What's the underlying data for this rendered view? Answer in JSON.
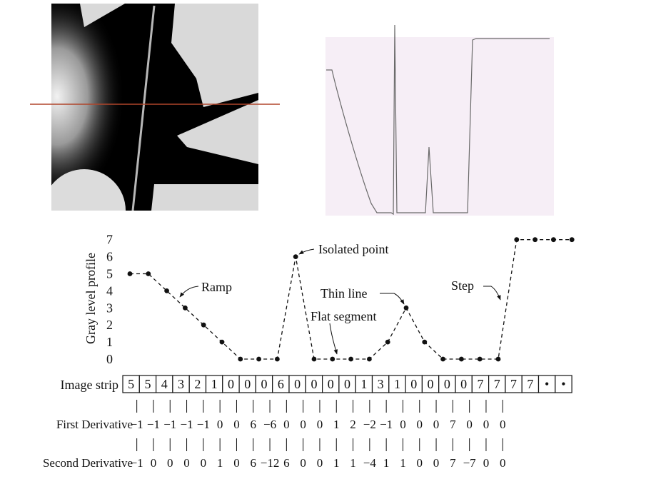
{
  "title": "",
  "profile_panel": {
    "background": "#f6eef6",
    "line_color": "#6a6a6a"
  },
  "scan_line_color": "#b0452a",
  "chart_data": {
    "type": "line",
    "ylabel": "Gray level profile",
    "ylim": [
      0,
      7
    ],
    "yticks": [
      0,
      1,
      2,
      3,
      4,
      5,
      6,
      7
    ],
    "values": [
      5,
      5,
      4,
      3,
      2,
      1,
      0,
      0,
      0,
      6,
      0,
      0,
      0,
      0,
      1,
      3,
      1,
      0,
      0,
      0,
      0,
      7,
      7,
      7,
      7
    ],
    "annotations": [
      {
        "text": "Ramp",
        "index": 3
      },
      {
        "text": "Isolated point",
        "index": 9
      },
      {
        "text": "Thin line",
        "index": 15
      },
      {
        "text": "Flat segment",
        "index": 11
      },
      {
        "text": "Step",
        "index": 20
      }
    ]
  },
  "strip": {
    "label": "Image strip",
    "cells": [
      "5",
      "5",
      "4",
      "3",
      "2",
      "1",
      "0",
      "0",
      "0",
      "6",
      "0",
      "0",
      "0",
      "0",
      "1",
      "3",
      "1",
      "0",
      "0",
      "0",
      "0",
      "7",
      "7",
      "7",
      "7",
      "•",
      "•"
    ]
  },
  "first_derivative": {
    "label": "First Derivative",
    "values": [
      "−1",
      "−1",
      "−1",
      "−1",
      "−1",
      "0",
      "0",
      "6",
      "−6",
      "0",
      "0",
      "0",
      "1",
      "2",
      "−2",
      "−1",
      "0",
      "0",
      "0",
      "7",
      "0",
      "0",
      "0"
    ]
  },
  "second_derivative": {
    "label": "Second Derivative",
    "values": [
      "−1",
      "0",
      "0",
      "0",
      "0",
      "1",
      "0",
      "6",
      "−12",
      "6",
      "0",
      "0",
      "1",
      "1",
      "−4",
      "1",
      "1",
      "0",
      "0",
      "7",
      "−7",
      "0",
      "0"
    ]
  }
}
